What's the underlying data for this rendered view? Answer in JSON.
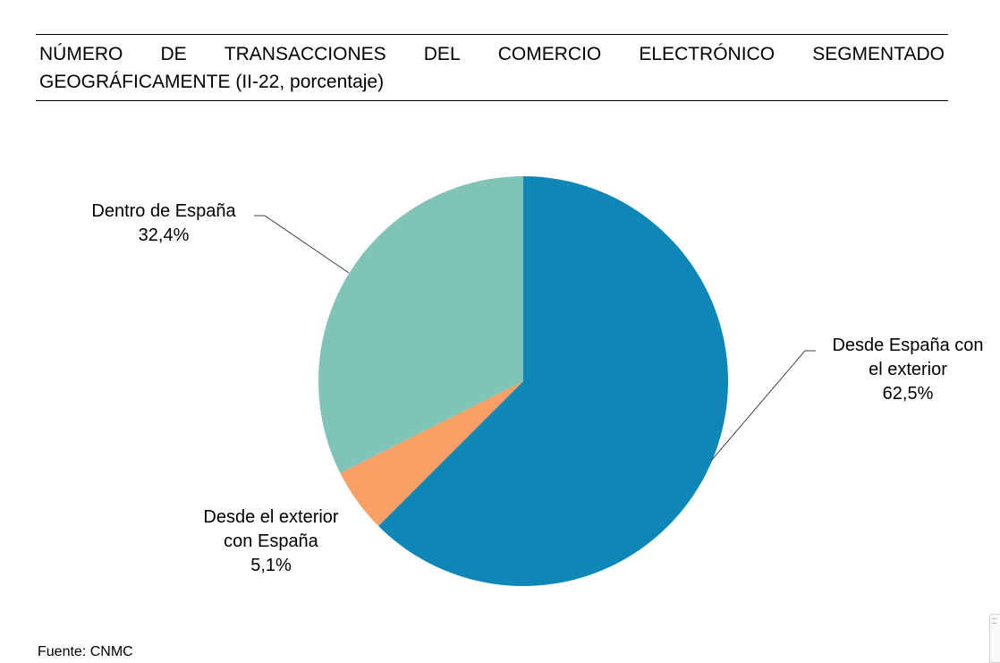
{
  "title": {
    "line1_words": [
      "NÚMERO",
      "DE",
      "TRANSACCIONES",
      "DEL",
      "COMERCIO",
      "ELECTRÓNICO",
      "SEGMENTADO"
    ],
    "line2": "GEOGRÁFICAMENTE (II-22, porcentaje)"
  },
  "source": "Fuente: CNMC",
  "colors": {
    "desde_espana_con_el_exterior": "#0e86b6",
    "desde_el_exterior_con_espana": "#f9a066",
    "dentro_de_espana": "#80c4b7",
    "leader_line": "#404040"
  },
  "chart_data": {
    "type": "pie",
    "start": "12 o'clock",
    "direction": "clockwise",
    "slices": [
      {
        "label_lines": [
          "Desde España con",
          "el exterior"
        ],
        "value": 62.5,
        "value_text": "62,5%",
        "color": "#0e86b6"
      },
      {
        "label_lines": [
          "Desde el exterior",
          "con España"
        ],
        "value": 5.1,
        "value_text": "5,1%",
        "color": "#f9a066"
      },
      {
        "label_lines": [
          "Dentro de España"
        ],
        "value": 32.4,
        "value_text": "32,4%",
        "color": "#80c4b7"
      }
    ]
  }
}
